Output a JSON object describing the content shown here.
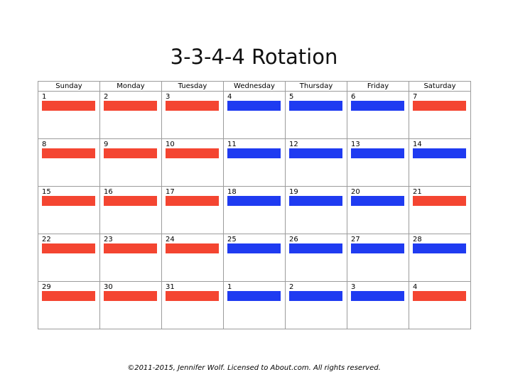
{
  "title": "3-3-4-4 Rotation",
  "weekdays": [
    "Sunday",
    "Monday",
    "Tuesday",
    "Wednesday",
    "Thursday",
    "Friday",
    "Saturday"
  ],
  "colors": {
    "red_shift": "#f44531",
    "blue_shift": "#1f3bf1",
    "grid": "#9c9c9c"
  },
  "weeks": [
    [
      {
        "day": "1",
        "shift": "red"
      },
      {
        "day": "2",
        "shift": "red"
      },
      {
        "day": "3",
        "shift": "red"
      },
      {
        "day": "4",
        "shift": "blue"
      },
      {
        "day": "5",
        "shift": "blue"
      },
      {
        "day": "6",
        "shift": "blue"
      },
      {
        "day": "7",
        "shift": "red"
      }
    ],
    [
      {
        "day": "8",
        "shift": "red"
      },
      {
        "day": "9",
        "shift": "red"
      },
      {
        "day": "10",
        "shift": "red"
      },
      {
        "day": "11",
        "shift": "blue"
      },
      {
        "day": "12",
        "shift": "blue"
      },
      {
        "day": "13",
        "shift": "blue"
      },
      {
        "day": "14",
        "shift": "blue"
      }
    ],
    [
      {
        "day": "15",
        "shift": "red"
      },
      {
        "day": "16",
        "shift": "red"
      },
      {
        "day": "17",
        "shift": "red"
      },
      {
        "day": "18",
        "shift": "blue"
      },
      {
        "day": "19",
        "shift": "blue"
      },
      {
        "day": "20",
        "shift": "blue"
      },
      {
        "day": "21",
        "shift": "red"
      }
    ],
    [
      {
        "day": "22",
        "shift": "red"
      },
      {
        "day": "23",
        "shift": "red"
      },
      {
        "day": "24",
        "shift": "red"
      },
      {
        "day": "25",
        "shift": "blue"
      },
      {
        "day": "26",
        "shift": "blue"
      },
      {
        "day": "27",
        "shift": "blue"
      },
      {
        "day": "28",
        "shift": "blue"
      }
    ],
    [
      {
        "day": "29",
        "shift": "red"
      },
      {
        "day": "30",
        "shift": "red"
      },
      {
        "day": "31",
        "shift": "red"
      },
      {
        "day": "1",
        "shift": "blue"
      },
      {
        "day": "2",
        "shift": "blue"
      },
      {
        "day": "3",
        "shift": "blue"
      },
      {
        "day": "4",
        "shift": "red"
      }
    ]
  ],
  "footer": "©2011-2015, Jennifer Wolf. Licensed to About.com. All rights reserved."
}
